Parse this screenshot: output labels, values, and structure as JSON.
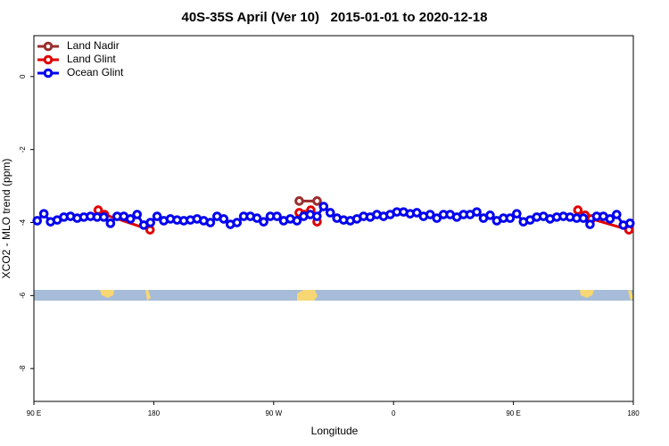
{
  "chart_data": {
    "type": "line",
    "title": "40S-35S April (Ver 10)   2015-01-01 to 2020-12-18",
    "x_label": "Longitude",
    "y_label": "XCO2 - MLO trend (ppm)",
    "xlim": [
      90,
      540
    ],
    "xticks": [
      {
        "value": 90,
        "label": "90 E"
      },
      180,
      {
        "value": 270,
        "label": "90 W"
      },
      {
        "value": 360,
        "label": "0"
      },
      {
        "value": 450,
        "label": "90 E"
      },
      {
        "value": 540,
        "label": "180"
      }
    ],
    "ylim": [
      -8.9,
      1.12
    ],
    "yticks": [
      0,
      -2,
      -4,
      -6,
      -8
    ],
    "legend": "top-left",
    "series": [
      {
        "name": "Land Nadir",
        "color": "#9b2d2d",
        "x": [
          289.2,
          302.6
        ],
        "values": [
          -3.41,
          -3.41
        ]
      },
      {
        "name": "Land Glint",
        "color": "#e00000",
        "x": [
          138.3,
          143,
          177.2,
          289.2,
          293.2,
          297.9,
          302.6,
          498.4,
          503.8,
          508.5,
          536.7
        ],
        "values": [
          -3.66,
          -3.78,
          -4.2,
          -3.73,
          -3.78,
          -3.66,
          -3.98,
          -3.66,
          -3.8,
          -3.9,
          -4.2
        ]
      },
      {
        "name": "Ocean Glint",
        "color": "#0000ee",
        "x": [
          92.5,
          97.5,
          102.5,
          107.5,
          112.5,
          117.5,
          122.5,
          127.5,
          132.5,
          137.5,
          142.5,
          147.5,
          152.5,
          157.5,
          162.5,
          167.5,
          172.5,
          177.5,
          182.5,
          187.5,
          192.5,
          197.5,
          202.5,
          207.5,
          212.5,
          217.5,
          222.5,
          227.5,
          232.5,
          237.5,
          242.5,
          247.5,
          252.5,
          257.5,
          262.5,
          267.5,
          272.5,
          277.5,
          282.5,
          287.5,
          292.5,
          297.5,
          302.5,
          307.5,
          312.5,
          317.5,
          322.5,
          327.5,
          332.5,
          337.5,
          342.5,
          347.5,
          352.5,
          357.5,
          362.5,
          367.5,
          372.5,
          377.5,
          382.5,
          387.5,
          392.5,
          397.5,
          402.5,
          407.5,
          412.5,
          417.5,
          422.5,
          427.5,
          432.5,
          437.5,
          442.5,
          447.5,
          452.5,
          457.5,
          462.5,
          467.5,
          472.5,
          477.5,
          482.5,
          487.5,
          492.5,
          497.5,
          502.5,
          507.5,
          512.5,
          517.5,
          522.5,
          527.5,
          532.5,
          537.5
        ],
        "values": [
          -3.95,
          -3.76,
          -3.98,
          -3.93,
          -3.85,
          -3.83,
          -3.88,
          -3.85,
          -3.83,
          -3.85,
          -3.85,
          -4.02,
          -3.83,
          -3.83,
          -3.9,
          -3.78,
          -4.07,
          -4.0,
          -3.83,
          -3.95,
          -3.9,
          -3.93,
          -3.95,
          -3.93,
          -3.9,
          -3.95,
          -4.0,
          -3.83,
          -3.9,
          -4.05,
          -4.0,
          -3.83,
          -3.83,
          -3.88,
          -3.98,
          -3.83,
          -3.83,
          -3.95,
          -3.9,
          -3.95,
          -3.83,
          -3.78,
          -3.83,
          -3.56,
          -3.73,
          -3.88,
          -3.93,
          -3.95,
          -3.9,
          -3.83,
          -3.85,
          -3.78,
          -3.83,
          -3.78,
          -3.71,
          -3.71,
          -3.76,
          -3.73,
          -3.83,
          -3.78,
          -3.88,
          -3.78,
          -3.78,
          -3.85,
          -3.78,
          -3.78,
          -3.71,
          -3.88,
          -3.8,
          -3.95,
          -3.88,
          -3.88,
          -3.76,
          -3.98,
          -3.93,
          -3.85,
          -3.83,
          -3.9,
          -3.85,
          -3.83,
          -3.85,
          -3.88,
          -3.88,
          -4.05,
          -3.83,
          -3.83,
          -3.9,
          -3.78,
          -4.07,
          -4.02
        ]
      }
    ]
  }
}
